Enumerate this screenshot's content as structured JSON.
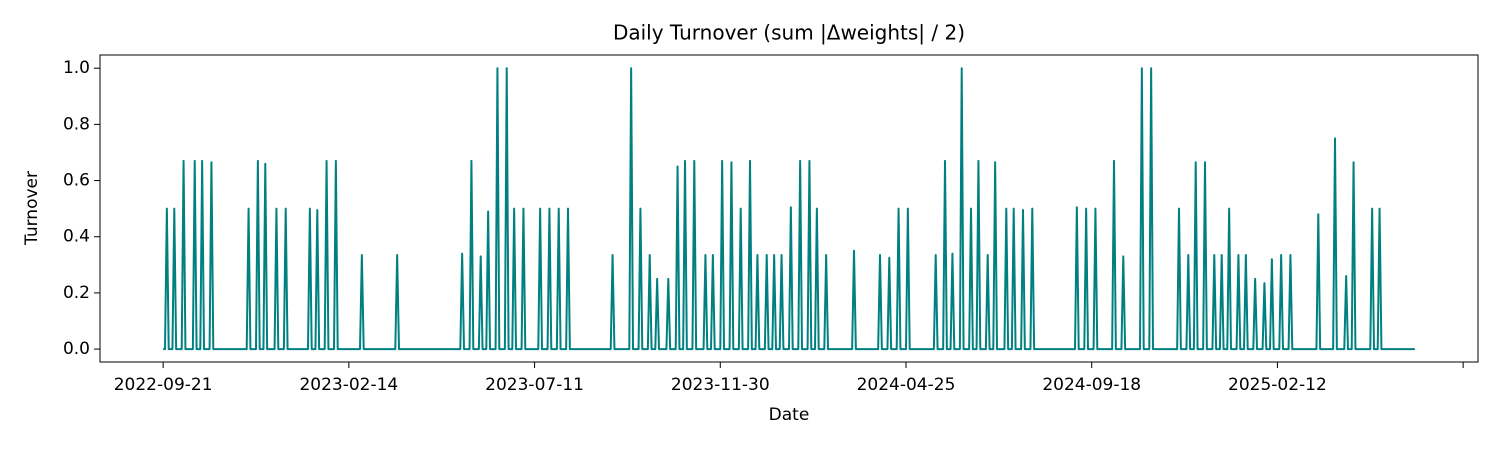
{
  "chart_data": {
    "type": "line",
    "title": "Daily Turnover (sum |Δweights| / 2)",
    "x_label": "Date",
    "y_label": "Turnover",
    "color": "#008080",
    "grid": false,
    "xlim": [
      -34,
      708
    ],
    "xticks": [
      {
        "value": 0,
        "label": "2022-09-21"
      },
      {
        "value": 100,
        "label": "2023-02-14"
      },
      {
        "value": 200,
        "label": "2023-07-11"
      },
      {
        "value": 300,
        "label": "2023-11-30"
      },
      {
        "value": 400,
        "label": "2024-04-25"
      },
      {
        "value": 500,
        "label": "2024-09-18"
      },
      {
        "value": 600,
        "label": "2025-02-12"
      },
      {
        "value": 700,
        "label": null
      }
    ],
    "ylim": [
      -0.046,
      1.047
    ],
    "yticks": [
      {
        "value": 0,
        "label": "0.0"
      },
      0.2,
      0.4,
      0.6,
      0.8,
      {
        "value": 1,
        "label": "1.0"
      }
    ],
    "x": [
      0,
      1,
      2,
      3,
      5,
      6,
      7,
      10,
      11,
      12,
      16,
      17,
      18,
      20,
      21,
      22,
      25,
      26,
      27,
      45,
      46,
      47,
      50,
      51,
      52,
      54,
      55,
      56,
      60,
      61,
      62,
      65,
      66,
      67,
      78,
      79,
      80,
      82,
      83,
      84,
      87,
      88,
      89,
      92,
      93,
      94,
      106,
      107,
      108,
      125,
      126,
      127,
      160,
      161,
      162,
      165,
      166,
      167,
      170,
      171,
      172,
      174,
      175,
      176,
      179,
      180,
      181,
      184,
      185,
      186,
      188,
      189,
      190,
      193,
      194,
      195,
      202,
      203,
      204,
      207,
      208,
      209,
      212,
      213,
      214,
      217,
      218,
      219,
      241,
      242,
      243,
      251,
      252,
      253,
      256,
      257,
      258,
      261,
      262,
      263,
      265,
      266,
      267,
      271,
      272,
      273,
      276,
      277,
      278,
      280,
      281,
      282,
      285,
      286,
      287,
      291,
      292,
      293,
      295,
      296,
      297,
      300,
      301,
      302,
      305,
      306,
      307,
      310,
      311,
      312,
      315,
      316,
      317,
      319,
      320,
      321,
      324,
      325,
      326,
      328,
      329,
      330,
      332,
      333,
      334,
      337,
      338,
      339,
      342,
      343,
      344,
      347,
      348,
      349,
      351,
      352,
      353,
      356,
      357,
      358,
      371,
      372,
      373,
      385,
      386,
      387,
      390,
      391,
      392,
      395,
      396,
      397,
      400,
      401,
      402,
      415,
      416,
      417,
      420,
      421,
      422,
      424,
      425,
      426,
      429,
      430,
      431,
      434,
      435,
      436,
      438,
      439,
      440,
      443,
      444,
      445,
      447,
      448,
      449,
      453,
      454,
      455,
      457,
      458,
      459,
      462,
      463,
      464,
      467,
      468,
      469,
      491,
      492,
      493,
      496,
      497,
      498,
      501,
      502,
      503,
      511,
      512,
      513,
      516,
      517,
      518,
      526,
      527,
      528,
      531,
      532,
      533,
      546,
      547,
      548,
      551,
      552,
      553,
      555,
      556,
      557,
      560,
      561,
      562,
      565,
      566,
      567,
      569,
      570,
      571,
      573,
      574,
      575,
      578,
      579,
      580,
      582,
      583,
      584,
      587,
      588,
      589,
      592,
      593,
      594,
      596,
      597,
      598,
      601,
      602,
      603,
      606,
      607,
      608,
      621,
      622,
      623,
      630,
      631,
      632,
      636,
      637,
      638,
      640,
      641,
      642,
      650,
      651,
      652,
      654,
      655,
      656,
      674
    ],
    "values": [
      0,
      0,
      0.5,
      0,
      0,
      0.5,
      0,
      0,
      0.67,
      0,
      0,
      0.67,
      0,
      0,
      0.67,
      0,
      0,
      0.665,
      0,
      0,
      0.5,
      0,
      0,
      0.67,
      0,
      0,
      0.66,
      0,
      0,
      0.5,
      0,
      0,
      0.5,
      0,
      0,
      0.5,
      0,
      0,
      0.495,
      0,
      0,
      0.67,
      0,
      0,
      0.67,
      0,
      0,
      0.335,
      0,
      0,
      0.335,
      0,
      0,
      0.34,
      0,
      0,
      0.67,
      0,
      0,
      0.33,
      0,
      0,
      0.49,
      0,
      0,
      1.0,
      0,
      0,
      1.0,
      0,
      0,
      0.5,
      0,
      0,
      0.5,
      0,
      0,
      0.5,
      0,
      0,
      0.5,
      0,
      0,
      0.5,
      0,
      0,
      0.5,
      0,
      0,
      0.335,
      0,
      0,
      1.0,
      0,
      0,
      0.5,
      0,
      0,
      0.335,
      0,
      0,
      0.25,
      0,
      0,
      0.25,
      0,
      0,
      0.65,
      0,
      0,
      0.67,
      0,
      0,
      0.67,
      0,
      0,
      0.335,
      0,
      0,
      0.335,
      0,
      0,
      0.67,
      0,
      0,
      0.665,
      0,
      0,
      0.5,
      0,
      0,
      0.67,
      0,
      0,
      0.335,
      0,
      0,
      0.335,
      0,
      0,
      0.335,
      0,
      0,
      0.335,
      0,
      0,
      0.505,
      0,
      0,
      0.67,
      0,
      0,
      0.67,
      0,
      0,
      0.5,
      0,
      0,
      0.335,
      0,
      0,
      0.35,
      0,
      0,
      0.335,
      0,
      0,
      0.325,
      0,
      0,
      0.5,
      0,
      0,
      0.5,
      0,
      0,
      0.335,
      0,
      0,
      0.67,
      0,
      0,
      0.34,
      0,
      0,
      1.0,
      0,
      0,
      0.5,
      0,
      0,
      0.67,
      0,
      0,
      0.335,
      0,
      0,
      0.665,
      0,
      0,
      0.5,
      0,
      0,
      0.5,
      0,
      0,
      0.495,
      0,
      0,
      0.5,
      0,
      0,
      0.505,
      0,
      0,
      0.5,
      0,
      0,
      0.5,
      0,
      0,
      0.67,
      0,
      0,
      0.33,
      0,
      0,
      1.0,
      0,
      0,
      1.0,
      0,
      0,
      0.5,
      0,
      0,
      0.335,
      0,
      0,
      0.665,
      0,
      0,
      0.665,
      0,
      0,
      0.335,
      0,
      0,
      0.335,
      0,
      0,
      0.5,
      0,
      0,
      0.335,
      0,
      0,
      0.335,
      0,
      0,
      0.25,
      0,
      0,
      0.235,
      0,
      0,
      0.32,
      0,
      0,
      0.335,
      0,
      0,
      0.335,
      0,
      0,
      0.48,
      0,
      0,
      0.75,
      0,
      0,
      0.26,
      0,
      0,
      0.665,
      0,
      0,
      0.5,
      0,
      0,
      0.5,
      0,
      0
    ]
  }
}
